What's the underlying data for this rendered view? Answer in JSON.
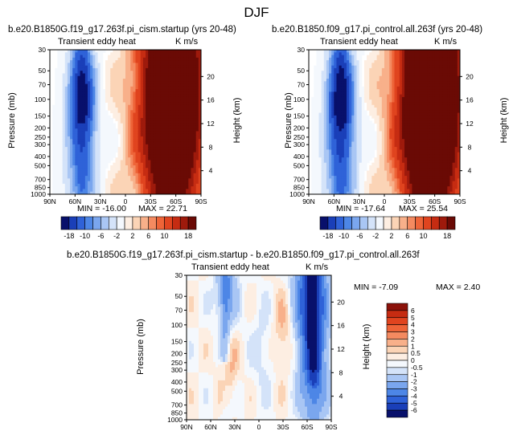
{
  "figure_title": "DJF",
  "colors": {
    "palette_main": [
      "#08106b",
      "#1a3fb8",
      "#2f62d8",
      "#4d86e6",
      "#7aa6ee",
      "#a9c6f4",
      "#d4e3f9",
      "#f4f8fd",
      "#fdeee2",
      "#fbd4b6",
      "#f8b08a",
      "#f48a60",
      "#ee6438",
      "#e0441f",
      "#c62c12",
      "#9e1a0c",
      "#6a0a05"
    ],
    "palette_diff": [
      "#08106b",
      "#1a3fb8",
      "#2f62d8",
      "#4d86e6",
      "#7aa6ee",
      "#a9c6f4",
      "#d4e3f9",
      "#f4f8fd",
      "#fdeee2",
      "#fbd4b6",
      "#f8b08a",
      "#f48a60",
      "#ee6438",
      "#e0441f",
      "#c62c12",
      "#8b120a"
    ]
  },
  "chart_data": [
    {
      "type": "heatmap",
      "id": "panel1",
      "title": "b.e20.B1850G.f19_g17.263f.pi_cism.startup (yrs 20-48)",
      "left_label": "Transient eddy heat",
      "units": "K m/s",
      "ylabel": "Pressure (mb)",
      "y2label": "Height (km)",
      "xticks": [
        "90N",
        "60N",
        "30N",
        "0",
        "30S",
        "60S",
        "90S"
      ],
      "xvals": [
        90,
        60,
        30,
        0,
        -30,
        -60,
        -90
      ],
      "yticks": [
        "30",
        "50",
        "70",
        "100",
        "150",
        "200",
        "250",
        "300",
        "400",
        "500",
        "700",
        "850",
        "1000"
      ],
      "yvals": [
        30,
        50,
        70,
        100,
        150,
        200,
        250,
        300,
        400,
        500,
        700,
        850,
        1000
      ],
      "y2ticks": [
        "4",
        "8",
        "12",
        "16",
        "20"
      ],
      "y2vals": [
        4,
        8,
        12,
        16,
        20
      ],
      "min_label": "MIN = -16.00",
      "max_label": "MAX = 22.71",
      "min": -16.0,
      "max": 22.71,
      "field": {
        "pos1": [
          -56,
          20,
          24,
          22
        ],
        "pos1b": [
          -60,
          17,
          20,
          14
        ],
        "pos2": [
          -50,
          10,
          25,
          16
        ],
        "neg1": [
          52,
          5,
          14,
          7
        ],
        "neg2": [
          52,
          17,
          11,
          14
        ],
        "strat": [
          -62,
          30,
          28,
          0.9
        ]
      }
    },
    {
      "type": "heatmap",
      "id": "panel2",
      "title": "b.e20.B1850.f09_g17.pi_control.all.263f (yrs 20-48)",
      "left_label": "Transient eddy heat",
      "units": "K m/s",
      "ylabel": "Pressure (mb)",
      "y2label": "Height (km)",
      "xticks": [
        "90N",
        "60N",
        "30N",
        "0",
        "30S",
        "60S",
        "90S"
      ],
      "xvals": [
        90,
        60,
        30,
        0,
        -30,
        -60,
        -90
      ],
      "yticks": [
        "30",
        "50",
        "70",
        "100",
        "150",
        "200",
        "250",
        "300",
        "400",
        "500",
        "700",
        "850",
        "1000"
      ],
      "yvals": [
        30,
        50,
        70,
        100,
        150,
        200,
        250,
        300,
        400,
        500,
        700,
        850,
        1000
      ],
      "y2ticks": [
        "4",
        "8",
        "12",
        "16",
        "20"
      ],
      "y2vals": [
        4,
        8,
        12,
        16,
        20
      ],
      "min_label": "MIN = -17.64",
      "max_label": "MAX = 25.54",
      "min": -17.64,
      "max": 25.54,
      "field": {
        "pos1": [
          -56,
          20,
          24,
          24
        ],
        "pos1b": [
          -60,
          17,
          20,
          15
        ],
        "pos2": [
          -50,
          10,
          25,
          18
        ],
        "neg1": [
          52,
          5,
          14,
          8
        ],
        "neg2": [
          52,
          17,
          11,
          15
        ],
        "strat": [
          -62,
          30,
          28,
          1.0
        ]
      }
    },
    {
      "type": "heatmap",
      "id": "panel3",
      "title": "b.e20.B1850G.f19_g17.263f.pi_cism.startup - b.e20.B1850.f09_g17.pi_control.all.263f",
      "left_label": "Transient eddy heat",
      "units": "K m/s",
      "ylabel": "Pressure (mb)",
      "y2label": "Height (km)",
      "xticks": [
        "90N",
        "60N",
        "30N",
        "0",
        "30S",
        "60S",
        "90S"
      ],
      "xvals": [
        90,
        60,
        30,
        0,
        -30,
        -60,
        -90
      ],
      "yticks": [
        "30",
        "50",
        "70",
        "100",
        "150",
        "200",
        "250",
        "300",
        "400",
        "500",
        "700",
        "850",
        "1000"
      ],
      "yvals": [
        30,
        50,
        70,
        100,
        150,
        200,
        250,
        300,
        400,
        500,
        700,
        850,
        1000
      ],
      "y2ticks": [
        "4",
        "8",
        "12",
        "16",
        "20"
      ],
      "y2vals": [
        4,
        8,
        12,
        16,
        20
      ],
      "min_label": "MIN =  -7.09",
      "max_label": "MAX =   2.40",
      "min": -7.09,
      "max": 2.4,
      "field": {
        "neg_a": [
          -65,
          22,
          14,
          -5.5
        ],
        "neg_b": [
          -68,
          8,
          12,
          -3.5
        ],
        "neg_c": [
          40,
          22,
          10,
          -2.2
        ],
        "pos_a": [
          -30,
          15,
          9,
          1.2
        ],
        "pos_b": [
          38,
          10,
          8,
          1.4
        ],
        "neg_d": [
          -5,
          12,
          10,
          -0.8
        ]
      }
    }
  ],
  "colorbar_main": {
    "labels": [
      "-18",
      "-10",
      "-6",
      "-2",
      "2",
      "6",
      "10",
      "18"
    ]
  },
  "colorbar_diff": {
    "labels": [
      "6",
      "5",
      "4",
      "3",
      "2",
      "1",
      "0.5",
      "0",
      "-0.5",
      "-1",
      "-2",
      "-3",
      "-4",
      "-5",
      "-6"
    ]
  }
}
